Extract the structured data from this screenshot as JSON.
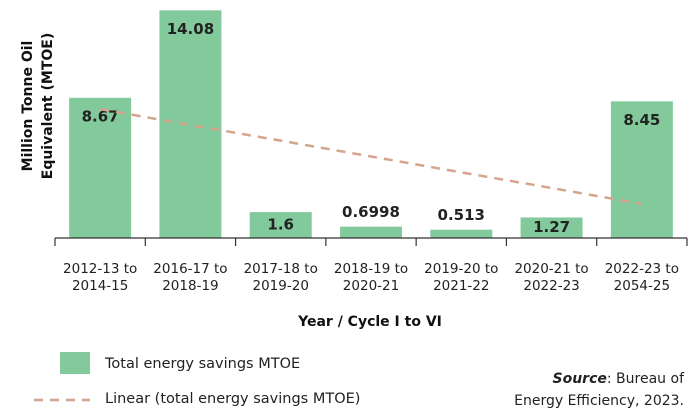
{
  "chart_data": {
    "type": "bar",
    "y_label": "Million Tonne Oil\nEquivalent (MTOE)",
    "x_label": "Year / Cycle I to VI",
    "categories": [
      "2012-13 to\n2014-15",
      "2016-17 to\n2018-19",
      "2017-18 to\n2019-20",
      "2018-19 to\n2020-21",
      "2019-20 to\n2021-22",
      "2020-21 to\n2022-23",
      "2022-23 to\n2054-25"
    ],
    "series": [
      {
        "name": "Total energy savings MTOE",
        "color": "#82c99b",
        "values": [
          8.67,
          14.08,
          1.6,
          0.6998,
          0.513,
          1.27,
          8.45
        ]
      },
      {
        "name": "Linear (total energy savings MTOE)",
        "color": "#d4a58c",
        "values": [
          7.97,
          6.99,
          6.02,
          5.04,
          4.06,
          3.09,
          2.11
        ]
      }
    ],
    "ylim": [
      0,
      14.1
    ],
    "source_label": "Source",
    "source_text": ": Bureau of\nEnergy Efficiency, 2023."
  }
}
